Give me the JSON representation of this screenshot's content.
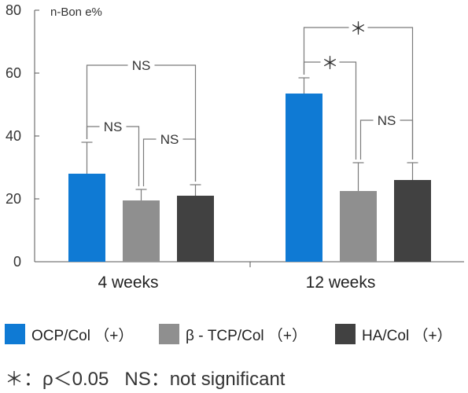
{
  "chart_data": {
    "type": "bar",
    "ylabel": "n-Bon e%",
    "ylim": [
      0,
      80
    ],
    "yticks": [
      0,
      20,
      40,
      60,
      80
    ],
    "groups": [
      "4 weeks",
      "12 weeks"
    ],
    "series": [
      {
        "name": "OCP/Col （+）",
        "color": "#0f7ad4",
        "values": [
          28,
          53.5
        ],
        "errors": [
          10,
          5
        ]
      },
      {
        "name": "β - TCP/Col （+）",
        "color": "#8f8f8f",
        "values": [
          19.5,
          22.5
        ],
        "errors": [
          3.5,
          9
        ]
      },
      {
        "name": "HA/Col （+）",
        "color": "#414141",
        "values": [
          21,
          26
        ],
        "errors": [
          3.5,
          5.5
        ]
      }
    ],
    "annotations": [
      {
        "group": 0,
        "from": 0,
        "to": 2,
        "label": "NS"
      },
      {
        "group": 0,
        "from": 0,
        "to": 1,
        "label": "NS"
      },
      {
        "group": 0,
        "from": 1,
        "to": 2,
        "label": "NS"
      },
      {
        "group": 1,
        "from": 0,
        "to": 2,
        "label": "＊"
      },
      {
        "group": 1,
        "from": 0,
        "to": 1,
        "label": "＊"
      },
      {
        "group": 1,
        "from": 1,
        "to": 2,
        "label": "NS"
      }
    ]
  },
  "legend": [
    {
      "label": "OCP/Col （+）",
      "color": "#0f7ad4"
    },
    {
      "label": "β - TCP/Col （+）",
      "color": "#8f8f8f"
    },
    {
      "label": "HA/Col （+）",
      "color": "#414141"
    }
  ],
  "footnote": {
    "significance": "＊：ρ＜0.05",
    "ns": "NS：not significant"
  }
}
